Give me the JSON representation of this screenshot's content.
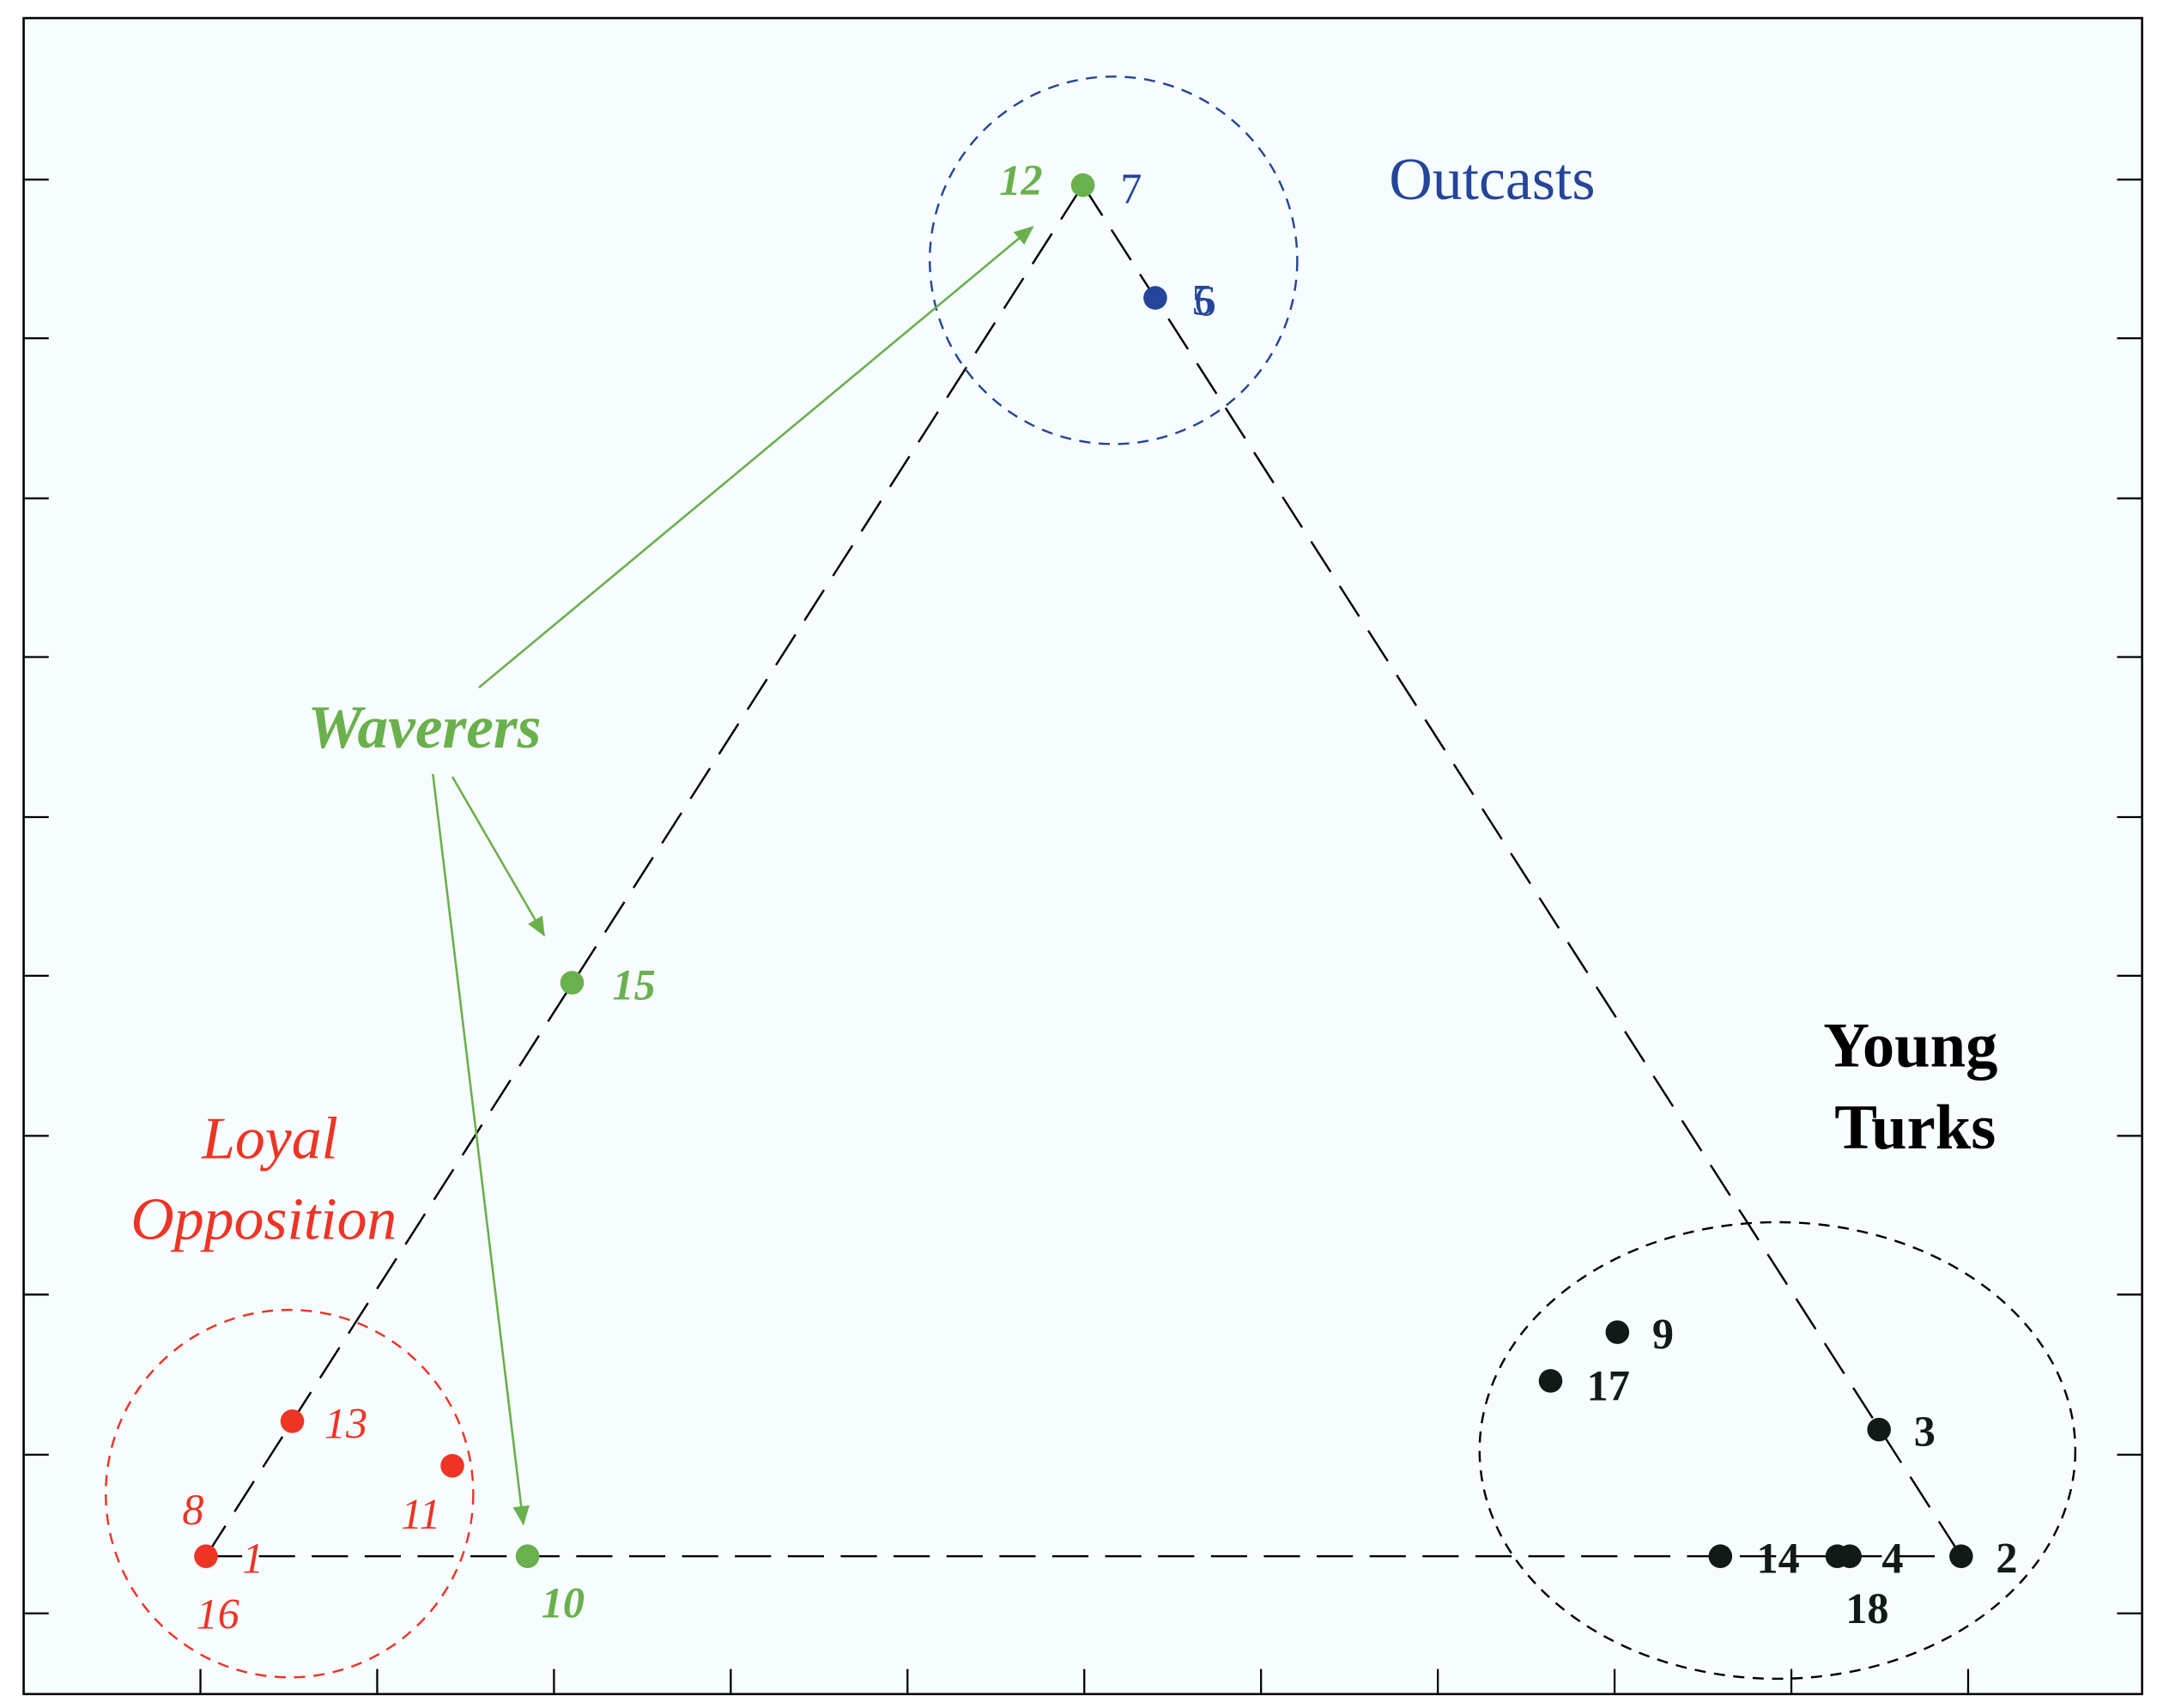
{
  "colors": {
    "background": "#f7fcff",
    "frame": "#000000",
    "red": "#ee3424",
    "green": "#6ab04c",
    "blue": "#25459a",
    "black": "#111a17"
  },
  "groups": {
    "outcasts": {
      "label": "Outcasts",
      "color": "#25459a"
    },
    "young_turks": {
      "line1": "Young",
      "line2": "Turks",
      "color": "#000000"
    },
    "waverers": {
      "label": "Waverers",
      "color": "#6ab04c"
    },
    "loyal_opposition": {
      "line1": "Loyal",
      "line2": "Opposition",
      "color": "#ee3424"
    }
  },
  "nodes": [
    {
      "id": "n12",
      "label": "12",
      "group": "waverers"
    },
    {
      "id": "n7",
      "label": "7",
      "group": "outcasts"
    },
    {
      "id": "n5",
      "label": "5",
      "group": "outcasts"
    },
    {
      "id": "n6",
      "label": "6",
      "group": "outcasts"
    },
    {
      "id": "n15",
      "label": "15",
      "group": "waverers"
    },
    {
      "id": "n10",
      "label": "10",
      "group": "waverers"
    },
    {
      "id": "n13",
      "label": "13",
      "group": "loyal_opposition"
    },
    {
      "id": "n11",
      "label": "11",
      "group": "loyal_opposition"
    },
    {
      "id": "n8",
      "label": "8",
      "group": "loyal_opposition"
    },
    {
      "id": "n1",
      "label": "1",
      "group": "loyal_opposition"
    },
    {
      "id": "n16",
      "label": "16",
      "group": "loyal_opposition"
    },
    {
      "id": "n9",
      "label": "9",
      "group": "young_turks"
    },
    {
      "id": "n17",
      "label": "17",
      "group": "young_turks"
    },
    {
      "id": "n3",
      "label": "3",
      "group": "young_turks"
    },
    {
      "id": "n14",
      "label": "14",
      "group": "young_turks"
    },
    {
      "id": "n4",
      "label": "4",
      "group": "young_turks"
    },
    {
      "id": "n18",
      "label": "18",
      "group": "young_turks"
    },
    {
      "id": "n2",
      "label": "2",
      "group": "young_turks"
    }
  ]
}
